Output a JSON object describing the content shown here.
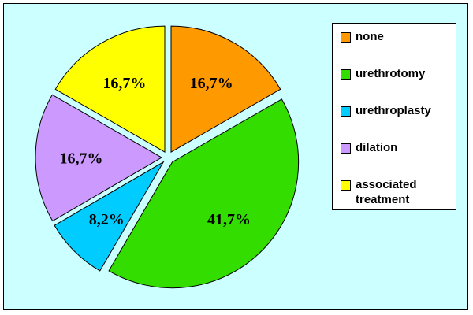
{
  "chart_data": {
    "type": "pie",
    "title": "",
    "legend_position": "right",
    "categories": [
      "none",
      "urethrotomy",
      "urethroplasty",
      "dilation",
      "associated treatment"
    ],
    "values": [
      16.7,
      41.7,
      8.2,
      16.7,
      16.7
    ],
    "value_labels": [
      "16,7%",
      "41,7%",
      "8,2%",
      "16,7%",
      "16,7%"
    ],
    "colors": [
      "#ff9900",
      "#33dd00",
      "#00ccff",
      "#cc99ff",
      "#ffff00"
    ],
    "exploded": true,
    "start_angle_deg": 0,
    "direction": "clockwise"
  },
  "legend": {
    "items": [
      {
        "label": "none",
        "color": "#ff9900"
      },
      {
        "label": "urethrotomy",
        "color": "#33dd00"
      },
      {
        "label": "urethroplasty",
        "color": "#00ccff"
      },
      {
        "label": "dilation",
        "color": "#cc99ff"
      },
      {
        "label": "associated treatment",
        "color": "#ffff00"
      }
    ]
  },
  "background_color": "#ccffff"
}
